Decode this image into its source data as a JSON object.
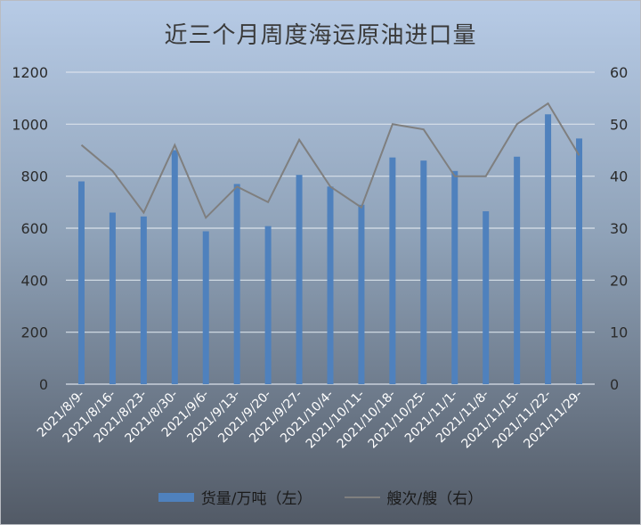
{
  "chart_data": {
    "type": "bar",
    "title": "近三个月周度海运原油进口量",
    "categories": [
      "2021/8/9-",
      "2021/8/16-",
      "2021/8/23-",
      "2021/8/30-",
      "2021/9/6-",
      "2021/9/13-",
      "2021/9/20-",
      "2021/9/27-",
      "2021/10/4-",
      "2021/10/11-",
      "2021/10/18-",
      "2021/10/25-",
      "2021/11/1-",
      "2021/11/8-",
      "2021/11/15-",
      "2021/11/22-",
      "2021/11/29-"
    ],
    "series": [
      {
        "name": "货量/万吨（左）",
        "type": "bar",
        "axis": "left",
        "color": "#4f81bd",
        "values": [
          780,
          660,
          645,
          900,
          588,
          770,
          608,
          805,
          760,
          690,
          872,
          860,
          820,
          665,
          875,
          1038,
          945
        ]
      },
      {
        "name": "艘次/艘（右）",
        "type": "line",
        "axis": "right",
        "color": "#7f7f7f",
        "values": [
          46,
          41,
          33,
          46,
          32,
          38,
          35,
          47,
          38,
          34,
          50,
          49,
          40,
          40,
          50,
          54,
          44
        ]
      }
    ],
    "y_left": {
      "range": [
        0,
        1200
      ],
      "ticks": [
        "0",
        "200",
        "400",
        "600",
        "800",
        "1000",
        "1200"
      ]
    },
    "y_right": {
      "range": [
        0,
        60
      ],
      "ticks": [
        "0",
        "10",
        "20",
        "30",
        "40",
        "50",
        "60"
      ]
    },
    "grid": true,
    "legend_position": "bottom"
  },
  "colors": {
    "bar": "#4f81bd",
    "line": "#7f7f7f",
    "grid": "#d9e1ea"
  }
}
